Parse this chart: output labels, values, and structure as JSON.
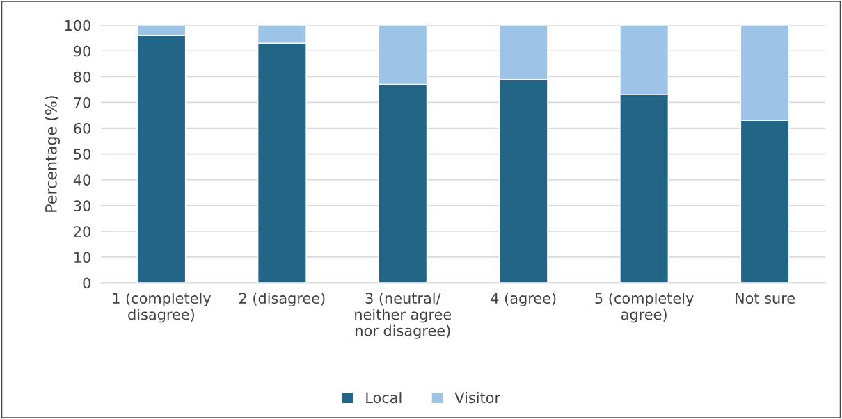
{
  "chart_data": {
    "type": "bar",
    "stacked": true,
    "ylabel": "Percentage (%)",
    "categories": [
      "1 (completely disagree)",
      "2 (disagree)",
      "3 (neutral/ neither agree nor disagree)",
      "4 (agree)",
      "5 (completely agree)",
      "Not sure"
    ],
    "series": [
      {
        "name": "Local",
        "color": "#226587",
        "values": [
          96,
          93,
          77,
          79,
          73,
          63
        ]
      },
      {
        "name": "Visitor",
        "color": "#9dc3e6",
        "values": [
          4,
          7,
          23,
          21,
          27,
          37
        ]
      }
    ],
    "ylim": [
      0,
      100
    ],
    "yticks": [
      0,
      10,
      20,
      30,
      40,
      50,
      60,
      70,
      80,
      90,
      100
    ],
    "grid": "y",
    "legend": "bottom"
  }
}
